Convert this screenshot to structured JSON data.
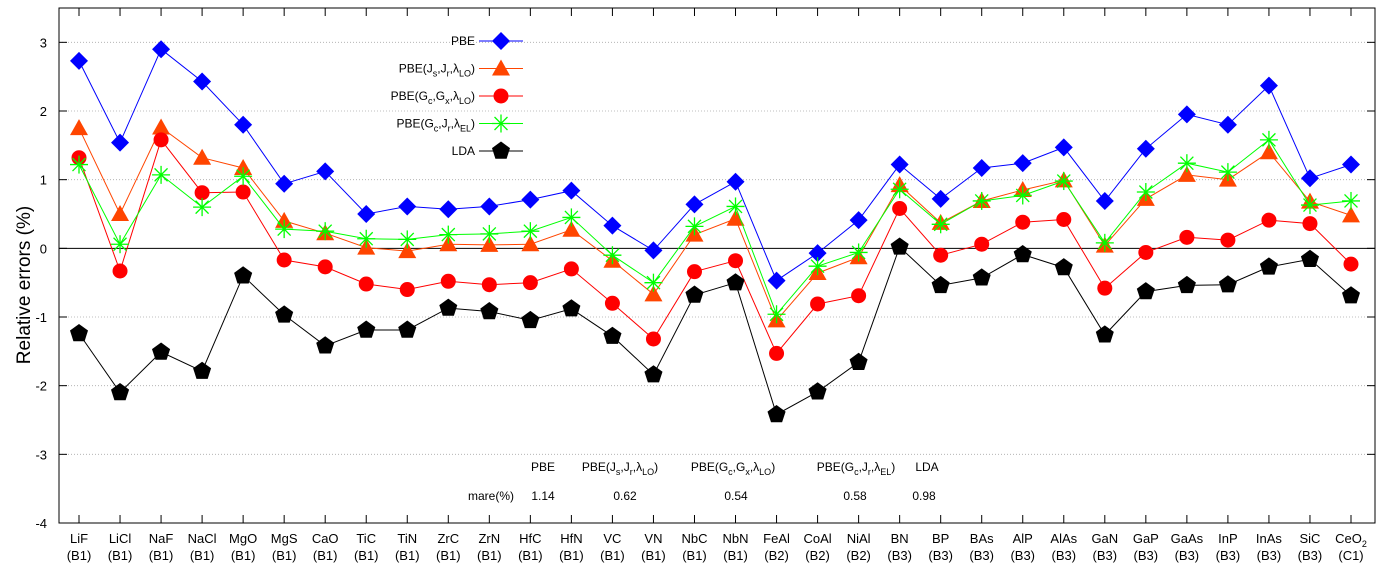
{
  "chart_data": {
    "type": "line",
    "title": "",
    "xlabel": "",
    "ylabel": "Relative errors (%)",
    "ylim": [
      -4,
      3.5
    ],
    "yticks": [
      "-4",
      "-3",
      "-2",
      "-1",
      "0",
      "1",
      "2",
      "3"
    ],
    "grid": true,
    "legend_position": "top-left",
    "categories": [
      {
        "name": "LiF",
        "sub": "",
        "struct": "(B1)"
      },
      {
        "name": "LiCl",
        "sub": "",
        "struct": "(B1)"
      },
      {
        "name": "NaF",
        "sub": "",
        "struct": "(B1)"
      },
      {
        "name": "NaCl",
        "sub": "",
        "struct": "(B1)"
      },
      {
        "name": "MgO",
        "sub": "",
        "struct": "(B1)"
      },
      {
        "name": "MgS",
        "sub": "",
        "struct": "(B1)"
      },
      {
        "name": "CaO",
        "sub": "",
        "struct": "(B1)"
      },
      {
        "name": "TiC",
        "sub": "",
        "struct": "(B1)"
      },
      {
        "name": "TiN",
        "sub": "",
        "struct": "(B1)"
      },
      {
        "name": "ZrC",
        "sub": "",
        "struct": "(B1)"
      },
      {
        "name": "ZrN",
        "sub": "",
        "struct": "(B1)"
      },
      {
        "name": "HfC",
        "sub": "",
        "struct": "(B1)"
      },
      {
        "name": "HfN",
        "sub": "",
        "struct": "(B1)"
      },
      {
        "name": "VC",
        "sub": "",
        "struct": "(B1)"
      },
      {
        "name": "VN",
        "sub": "",
        "struct": "(B1)"
      },
      {
        "name": "NbC",
        "sub": "",
        "struct": "(B1)"
      },
      {
        "name": "NbN",
        "sub": "",
        "struct": "(B1)"
      },
      {
        "name": "FeAl",
        "sub": "",
        "struct": "(B2)"
      },
      {
        "name": "CoAl",
        "sub": "",
        "struct": "(B2)"
      },
      {
        "name": "NiAl",
        "sub": "",
        "struct": "(B2)"
      },
      {
        "name": "BN",
        "sub": "",
        "struct": "(B3)"
      },
      {
        "name": "BP",
        "sub": "",
        "struct": "(B3)"
      },
      {
        "name": "BAs",
        "sub": "",
        "struct": "(B3)"
      },
      {
        "name": "AlP",
        "sub": "",
        "struct": "(B3)"
      },
      {
        "name": "AlAs",
        "sub": "",
        "struct": "(B3)"
      },
      {
        "name": "GaN",
        "sub": "",
        "struct": "(B3)"
      },
      {
        "name": "GaP",
        "sub": "",
        "struct": "(B3)"
      },
      {
        "name": "GaAs",
        "sub": "",
        "struct": "(B3)"
      },
      {
        "name": "InP",
        "sub": "",
        "struct": "(B3)"
      },
      {
        "name": "InAs",
        "sub": "",
        "struct": "(B3)"
      },
      {
        "name": "SiC",
        "sub": "",
        "struct": "(B3)"
      },
      {
        "name": "CeO",
        "sub": "2",
        "struct": "(C1)"
      }
    ],
    "series": [
      {
        "name": "PBE",
        "legend": [
          {
            "t": "PBE"
          }
        ],
        "color": "#0000ff",
        "marker": "diamond",
        "values": [
          2.73,
          1.54,
          2.9,
          2.43,
          1.8,
          0.94,
          1.12,
          0.5,
          0.61,
          0.57,
          0.61,
          0.71,
          0.84,
          0.33,
          -0.03,
          0.64,
          0.97,
          -0.47,
          -0.07,
          0.41,
          1.22,
          0.72,
          1.17,
          1.24,
          1.47,
          0.69,
          1.45,
          1.95,
          1.8,
          2.37,
          1.02,
          1.22
        ]
      },
      {
        "name": "PBE(Js,Jr,λLO)",
        "legend": [
          {
            "t": "PBE(J"
          },
          {
            "t": "s",
            "s": 1
          },
          {
            "t": ",J"
          },
          {
            "t": "r",
            "s": 1
          },
          {
            "t": ",λ"
          },
          {
            "t": "LO",
            "s": 1
          },
          {
            "t": ")"
          }
        ],
        "color": "#ff4500",
        "marker": "triangle",
        "values": [
          1.75,
          0.5,
          1.76,
          1.32,
          1.17,
          0.4,
          0.22,
          0.01,
          -0.04,
          0.06,
          0.05,
          0.06,
          0.27,
          -0.18,
          -0.67,
          0.2,
          0.43,
          -1.05,
          -0.36,
          -0.13,
          0.92,
          0.37,
          0.69,
          0.85,
          0.99,
          0.04,
          0.72,
          1.07,
          1.0,
          1.4,
          0.68,
          0.48
        ]
      },
      {
        "name": "PBE(Gc,Gx,λLO)",
        "legend": [
          {
            "t": "PBE(G"
          },
          {
            "t": "c",
            "s": 1
          },
          {
            "t": ",G"
          },
          {
            "t": "x",
            "s": 1
          },
          {
            "t": ",λ"
          },
          {
            "t": "LO",
            "s": 1
          },
          {
            "t": ")"
          }
        ],
        "color": "#ff0000",
        "marker": "circle",
        "values": [
          1.32,
          -0.33,
          1.58,
          0.81,
          0.82,
          -0.17,
          -0.27,
          -0.52,
          -0.6,
          -0.48,
          -0.53,
          -0.5,
          -0.3,
          -0.8,
          -1.32,
          -0.34,
          -0.18,
          -1.53,
          -0.81,
          -0.69,
          0.58,
          -0.1,
          0.06,
          0.38,
          0.42,
          -0.58,
          -0.06,
          0.16,
          0.12,
          0.41,
          0.36,
          -0.23
        ]
      },
      {
        "name": "PBE(Gc,Jr,λEL)",
        "legend": [
          {
            "t": "PBE(G"
          },
          {
            "t": "c",
            "s": 1
          },
          {
            "t": ",J"
          },
          {
            "t": "r",
            "s": 1
          },
          {
            "t": ",λ"
          },
          {
            "t": "EL",
            "s": 1
          },
          {
            "t": ")"
          }
        ],
        "color": "#00ff00",
        "marker": "star",
        "values": [
          1.22,
          0.06,
          1.07,
          0.6,
          1.05,
          0.28,
          0.25,
          0.14,
          0.13,
          0.2,
          0.21,
          0.25,
          0.45,
          -0.1,
          -0.5,
          0.32,
          0.61,
          -0.96,
          -0.26,
          -0.06,
          0.86,
          0.35,
          0.69,
          0.77,
          0.98,
          0.08,
          0.82,
          1.24,
          1.11,
          1.58,
          0.63,
          0.69
        ]
      },
      {
        "name": "LDA",
        "legend": [
          {
            "t": "LDA"
          }
        ],
        "color": "#000000",
        "marker": "pentagon",
        "values": [
          -1.24,
          -2.1,
          -1.51,
          -1.79,
          -0.4,
          -0.97,
          -1.42,
          -1.19,
          -1.19,
          -0.87,
          -0.92,
          -1.05,
          -0.88,
          -1.28,
          -1.84,
          -0.68,
          -0.5,
          -2.42,
          -2.09,
          -1.66,
          0.02,
          -0.54,
          -0.43,
          -0.09,
          -0.28,
          -1.26,
          -0.63,
          -0.54,
          -0.53,
          -0.27,
          -0.16,
          -0.69
        ]
      }
    ],
    "mare_table": {
      "row_label": "mare(%)",
      "columns": [
        {
          "header": [
            {
              "t": "PBE"
            }
          ],
          "value": "1.14"
        },
        {
          "header": [
            {
              "t": "PBE(J"
            },
            {
              "t": "s",
              "s": 1
            },
            {
              "t": ",J"
            },
            {
              "t": "r",
              "s": 1
            },
            {
              "t": ",λ"
            },
            {
              "t": "LO",
              "s": 1
            },
            {
              "t": ")"
            }
          ],
          "value": "0.62"
        },
        {
          "header": [
            {
              "t": "PBE(G"
            },
            {
              "t": "c",
              "s": 1
            },
            {
              "t": ",G"
            },
            {
              "t": "x",
              "s": 1
            },
            {
              "t": ",λ"
            },
            {
              "t": "LO",
              "s": 1
            },
            {
              "t": ")"
            }
          ],
          "value": "0.54"
        },
        {
          "header": [
            {
              "t": "PBE(G"
            },
            {
              "t": "c",
              "s": 1
            },
            {
              "t": ",J"
            },
            {
              "t": "r",
              "s": 1
            },
            {
              "t": ",λ"
            },
            {
              "t": "EL",
              "s": 1
            },
            {
              "t": ")"
            }
          ],
          "value": "0.58"
        },
        {
          "header": [
            {
              "t": "LDA"
            }
          ],
          "value": "0.98"
        }
      ]
    }
  }
}
